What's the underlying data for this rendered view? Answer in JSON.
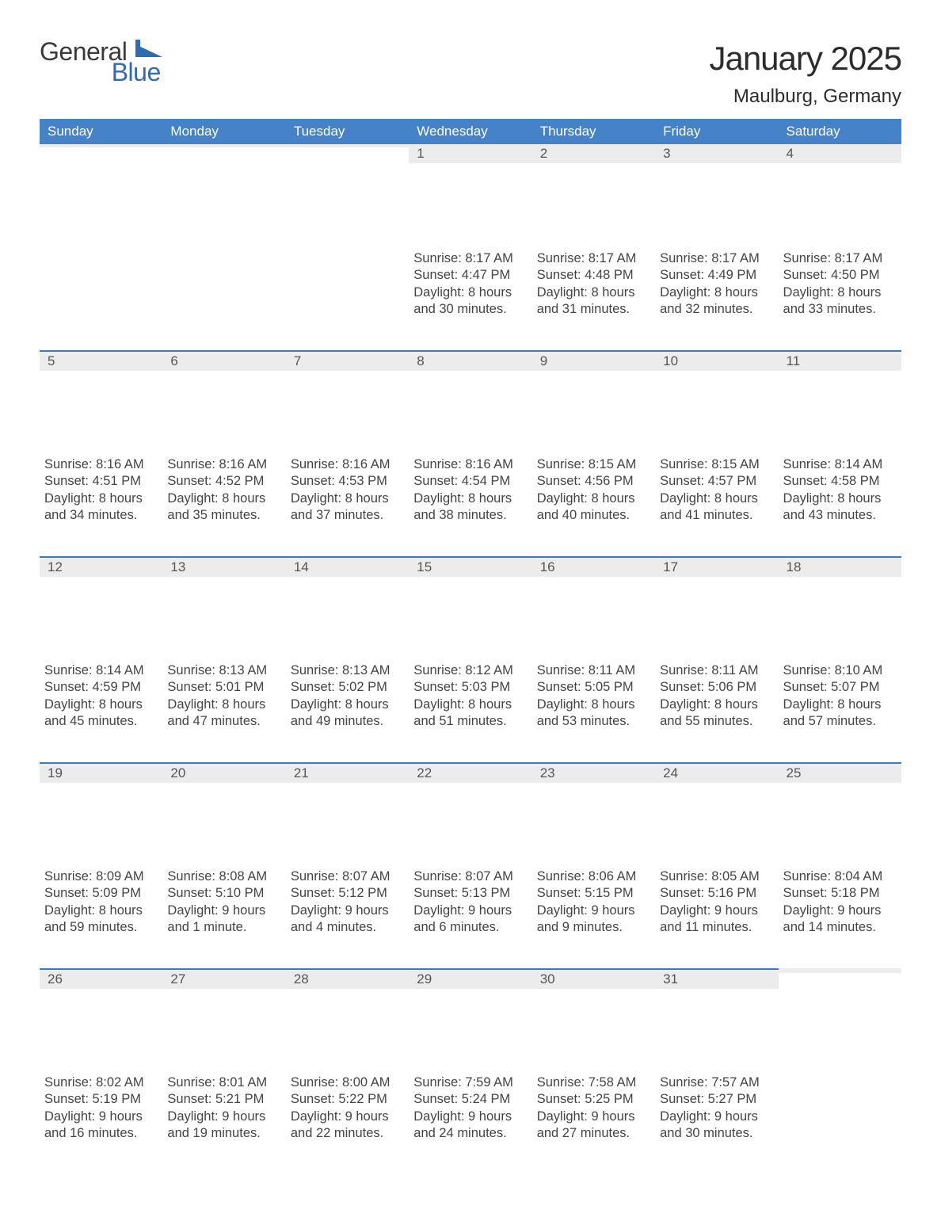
{
  "brand": {
    "line1": "General",
    "line2": "Blue"
  },
  "title": "January 2025",
  "location": "Maulburg, Germany",
  "weekdays": [
    "Sunday",
    "Monday",
    "Tuesday",
    "Wednesday",
    "Thursday",
    "Friday",
    "Saturday"
  ],
  "colors": {
    "header_bg": "#4682c8",
    "accent_blue": "#2f6bb3",
    "daynum_bg": "#ececec",
    "border_blue": "#3b7ac0",
    "text": "#3c3c3c",
    "background": "#ffffff"
  },
  "typography": {
    "title_fontsize_pt": 32,
    "location_fontsize_pt": 18,
    "body_fontsize_pt": 12,
    "header_fontsize_pt": 13,
    "font_family": "Arial"
  },
  "weeks": [
    [
      {
        "day": "",
        "sunrise": "",
        "sunset": "",
        "daylight": ""
      },
      {
        "day": "",
        "sunrise": "",
        "sunset": "",
        "daylight": ""
      },
      {
        "day": "",
        "sunrise": "",
        "sunset": "",
        "daylight": ""
      },
      {
        "day": "1",
        "sunrise": "Sunrise: 8:17 AM",
        "sunset": "Sunset: 4:47 PM",
        "daylight": "Daylight: 8 hours and 30 minutes."
      },
      {
        "day": "2",
        "sunrise": "Sunrise: 8:17 AM",
        "sunset": "Sunset: 4:48 PM",
        "daylight": "Daylight: 8 hours and 31 minutes."
      },
      {
        "day": "3",
        "sunrise": "Sunrise: 8:17 AM",
        "sunset": "Sunset: 4:49 PM",
        "daylight": "Daylight: 8 hours and 32 minutes."
      },
      {
        "day": "4",
        "sunrise": "Sunrise: 8:17 AM",
        "sunset": "Sunset: 4:50 PM",
        "daylight": "Daylight: 8 hours and 33 minutes."
      }
    ],
    [
      {
        "day": "5",
        "sunrise": "Sunrise: 8:16 AM",
        "sunset": "Sunset: 4:51 PM",
        "daylight": "Daylight: 8 hours and 34 minutes."
      },
      {
        "day": "6",
        "sunrise": "Sunrise: 8:16 AM",
        "sunset": "Sunset: 4:52 PM",
        "daylight": "Daylight: 8 hours and 35 minutes."
      },
      {
        "day": "7",
        "sunrise": "Sunrise: 8:16 AM",
        "sunset": "Sunset: 4:53 PM",
        "daylight": "Daylight: 8 hours and 37 minutes."
      },
      {
        "day": "8",
        "sunrise": "Sunrise: 8:16 AM",
        "sunset": "Sunset: 4:54 PM",
        "daylight": "Daylight: 8 hours and 38 minutes."
      },
      {
        "day": "9",
        "sunrise": "Sunrise: 8:15 AM",
        "sunset": "Sunset: 4:56 PM",
        "daylight": "Daylight: 8 hours and 40 minutes."
      },
      {
        "day": "10",
        "sunrise": "Sunrise: 8:15 AM",
        "sunset": "Sunset: 4:57 PM",
        "daylight": "Daylight: 8 hours and 41 minutes."
      },
      {
        "day": "11",
        "sunrise": "Sunrise: 8:14 AM",
        "sunset": "Sunset: 4:58 PM",
        "daylight": "Daylight: 8 hours and 43 minutes."
      }
    ],
    [
      {
        "day": "12",
        "sunrise": "Sunrise: 8:14 AM",
        "sunset": "Sunset: 4:59 PM",
        "daylight": "Daylight: 8 hours and 45 minutes."
      },
      {
        "day": "13",
        "sunrise": "Sunrise: 8:13 AM",
        "sunset": "Sunset: 5:01 PM",
        "daylight": "Daylight: 8 hours and 47 minutes."
      },
      {
        "day": "14",
        "sunrise": "Sunrise: 8:13 AM",
        "sunset": "Sunset: 5:02 PM",
        "daylight": "Daylight: 8 hours and 49 minutes."
      },
      {
        "day": "15",
        "sunrise": "Sunrise: 8:12 AM",
        "sunset": "Sunset: 5:03 PM",
        "daylight": "Daylight: 8 hours and 51 minutes."
      },
      {
        "day": "16",
        "sunrise": "Sunrise: 8:11 AM",
        "sunset": "Sunset: 5:05 PM",
        "daylight": "Daylight: 8 hours and 53 minutes."
      },
      {
        "day": "17",
        "sunrise": "Sunrise: 8:11 AM",
        "sunset": "Sunset: 5:06 PM",
        "daylight": "Daylight: 8 hours and 55 minutes."
      },
      {
        "day": "18",
        "sunrise": "Sunrise: 8:10 AM",
        "sunset": "Sunset: 5:07 PM",
        "daylight": "Daylight: 8 hours and 57 minutes."
      }
    ],
    [
      {
        "day": "19",
        "sunrise": "Sunrise: 8:09 AM",
        "sunset": "Sunset: 5:09 PM",
        "daylight": "Daylight: 8 hours and 59 minutes."
      },
      {
        "day": "20",
        "sunrise": "Sunrise: 8:08 AM",
        "sunset": "Sunset: 5:10 PM",
        "daylight": "Daylight: 9 hours and 1 minute."
      },
      {
        "day": "21",
        "sunrise": "Sunrise: 8:07 AM",
        "sunset": "Sunset: 5:12 PM",
        "daylight": "Daylight: 9 hours and 4 minutes."
      },
      {
        "day": "22",
        "sunrise": "Sunrise: 8:07 AM",
        "sunset": "Sunset: 5:13 PM",
        "daylight": "Daylight: 9 hours and 6 minutes."
      },
      {
        "day": "23",
        "sunrise": "Sunrise: 8:06 AM",
        "sunset": "Sunset: 5:15 PM",
        "daylight": "Daylight: 9 hours and 9 minutes."
      },
      {
        "day": "24",
        "sunrise": "Sunrise: 8:05 AM",
        "sunset": "Sunset: 5:16 PM",
        "daylight": "Daylight: 9 hours and 11 minutes."
      },
      {
        "day": "25",
        "sunrise": "Sunrise: 8:04 AM",
        "sunset": "Sunset: 5:18 PM",
        "daylight": "Daylight: 9 hours and 14 minutes."
      }
    ],
    [
      {
        "day": "26",
        "sunrise": "Sunrise: 8:02 AM",
        "sunset": "Sunset: 5:19 PM",
        "daylight": "Daylight: 9 hours and 16 minutes."
      },
      {
        "day": "27",
        "sunrise": "Sunrise: 8:01 AM",
        "sunset": "Sunset: 5:21 PM",
        "daylight": "Daylight: 9 hours and 19 minutes."
      },
      {
        "day": "28",
        "sunrise": "Sunrise: 8:00 AM",
        "sunset": "Sunset: 5:22 PM",
        "daylight": "Daylight: 9 hours and 22 minutes."
      },
      {
        "day": "29",
        "sunrise": "Sunrise: 7:59 AM",
        "sunset": "Sunset: 5:24 PM",
        "daylight": "Daylight: 9 hours and 24 minutes."
      },
      {
        "day": "30",
        "sunrise": "Sunrise: 7:58 AM",
        "sunset": "Sunset: 5:25 PM",
        "daylight": "Daylight: 9 hours and 27 minutes."
      },
      {
        "day": "31",
        "sunrise": "Sunrise: 7:57 AM",
        "sunset": "Sunset: 5:27 PM",
        "daylight": "Daylight: 9 hours and 30 minutes."
      },
      {
        "day": "",
        "sunrise": "",
        "sunset": "",
        "daylight": ""
      }
    ]
  ]
}
